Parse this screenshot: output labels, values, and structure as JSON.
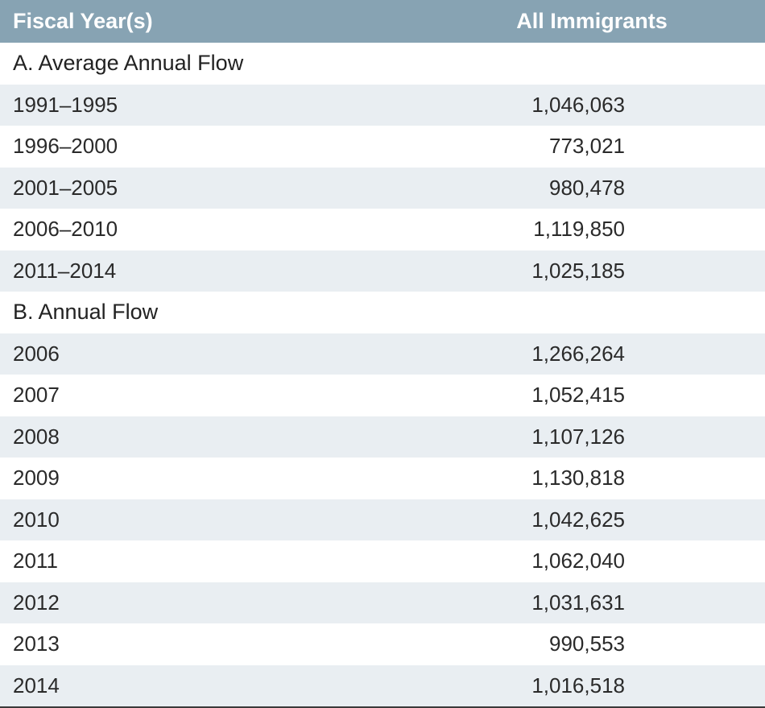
{
  "header": {
    "col1": "Fiscal Year(s)",
    "col2": "All Immigrants"
  },
  "sections": [
    {
      "title": "A. Average Annual Flow",
      "rows": [
        {
          "year": "1991–1995",
          "value": "1,046,063"
        },
        {
          "year": "1996–2000",
          "value": "773,021"
        },
        {
          "year": "2001–2005",
          "value": "980,478"
        },
        {
          "year": "2006–2010",
          "value": "1,119,850"
        },
        {
          "year": "2011–2014",
          "value": "1,025,185"
        }
      ]
    },
    {
      "title": "B. Annual Flow",
      "rows": [
        {
          "year": "2006",
          "value": "1,266,264"
        },
        {
          "year": "2007",
          "value": "1,052,415"
        },
        {
          "year": "2008",
          "value": "1,107,126"
        },
        {
          "year": "2009",
          "value": "1,130,818"
        },
        {
          "year": "2010",
          "value": "1,042,625"
        },
        {
          "year": "2011",
          "value": "1,062,040"
        },
        {
          "year": "2012",
          "value": "1,031,631"
        },
        {
          "year": "2013",
          "value": "990,553"
        },
        {
          "year": "2014",
          "value": "1,016,518"
        }
      ]
    }
  ]
}
